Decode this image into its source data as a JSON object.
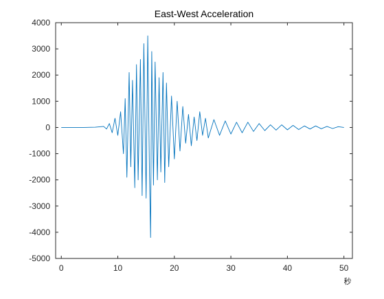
{
  "colors": {
    "series": "#0072BD",
    "axis": "#262626",
    "background": "#ffffff"
  },
  "chart_data": {
    "type": "line",
    "title": "East-West Acceleration",
    "xlabel": "秒",
    "ylabel": "",
    "xlim": [
      -1,
      51.5
    ],
    "ylim": [
      -5000,
      4000
    ],
    "xticks": [
      0,
      10,
      20,
      30,
      40,
      50
    ],
    "xtick_labels": [
      "0",
      "10",
      "20",
      "30",
      "40",
      "50"
    ],
    "yticks": [
      -5000,
      -4000,
      -3000,
      -2000,
      -1000,
      0,
      1000,
      2000,
      3000,
      4000
    ],
    "ytick_labels": [
      "-5000",
      "-4000",
      "-3000",
      "-2000",
      "-1000",
      "0",
      "1000",
      "2000",
      "3000",
      "4000"
    ],
    "grid": false,
    "series": [
      {
        "values_note_free": true,
        "x": [
          0,
          2,
          4,
          6,
          7.5,
          8,
          8.5,
          9,
          9.5,
          10,
          10.5,
          11,
          11.3,
          11.6,
          12,
          12.3,
          12.6,
          13,
          13.3,
          13.6,
          14,
          14.3,
          14.6,
          15,
          15.3,
          15.6,
          15.8,
          16,
          16.3,
          16.6,
          17,
          17.3,
          17.6,
          18,
          18.3,
          18.6,
          19,
          19.5,
          20,
          20.5,
          21,
          21.5,
          22,
          22.5,
          23,
          23.5,
          24,
          24.5,
          25,
          25.5,
          26,
          27,
          28,
          29,
          30,
          31,
          32,
          33,
          34,
          35,
          36,
          37,
          38,
          39,
          40,
          41,
          42,
          43,
          44,
          45,
          46,
          47,
          48,
          49,
          50
        ],
        "y": [
          0,
          0,
          0,
          10,
          40,
          -60,
          150,
          -200,
          350,
          -300,
          600,
          -1000,
          1100,
          -1900,
          2100,
          -1500,
          1800,
          -2300,
          2400,
          -2000,
          2600,
          -2600,
          3200,
          -2700,
          3500,
          -1800,
          -4200,
          2900,
          -2200,
          2500,
          -2000,
          1900,
          -1700,
          2100,
          -2100,
          1700,
          -1500,
          1200,
          -1200,
          1000,
          -900,
          800,
          -600,
          500,
          -700,
          400,
          -500,
          600,
          -300,
          350,
          -400,
          300,
          -300,
          250,
          -250,
          200,
          -200,
          200,
          -150,
          150,
          -120,
          100,
          -100,
          100,
          -90,
          80,
          -80,
          60,
          -60,
          60,
          -50,
          40,
          -40,
          30,
          0
        ]
      }
    ]
  }
}
